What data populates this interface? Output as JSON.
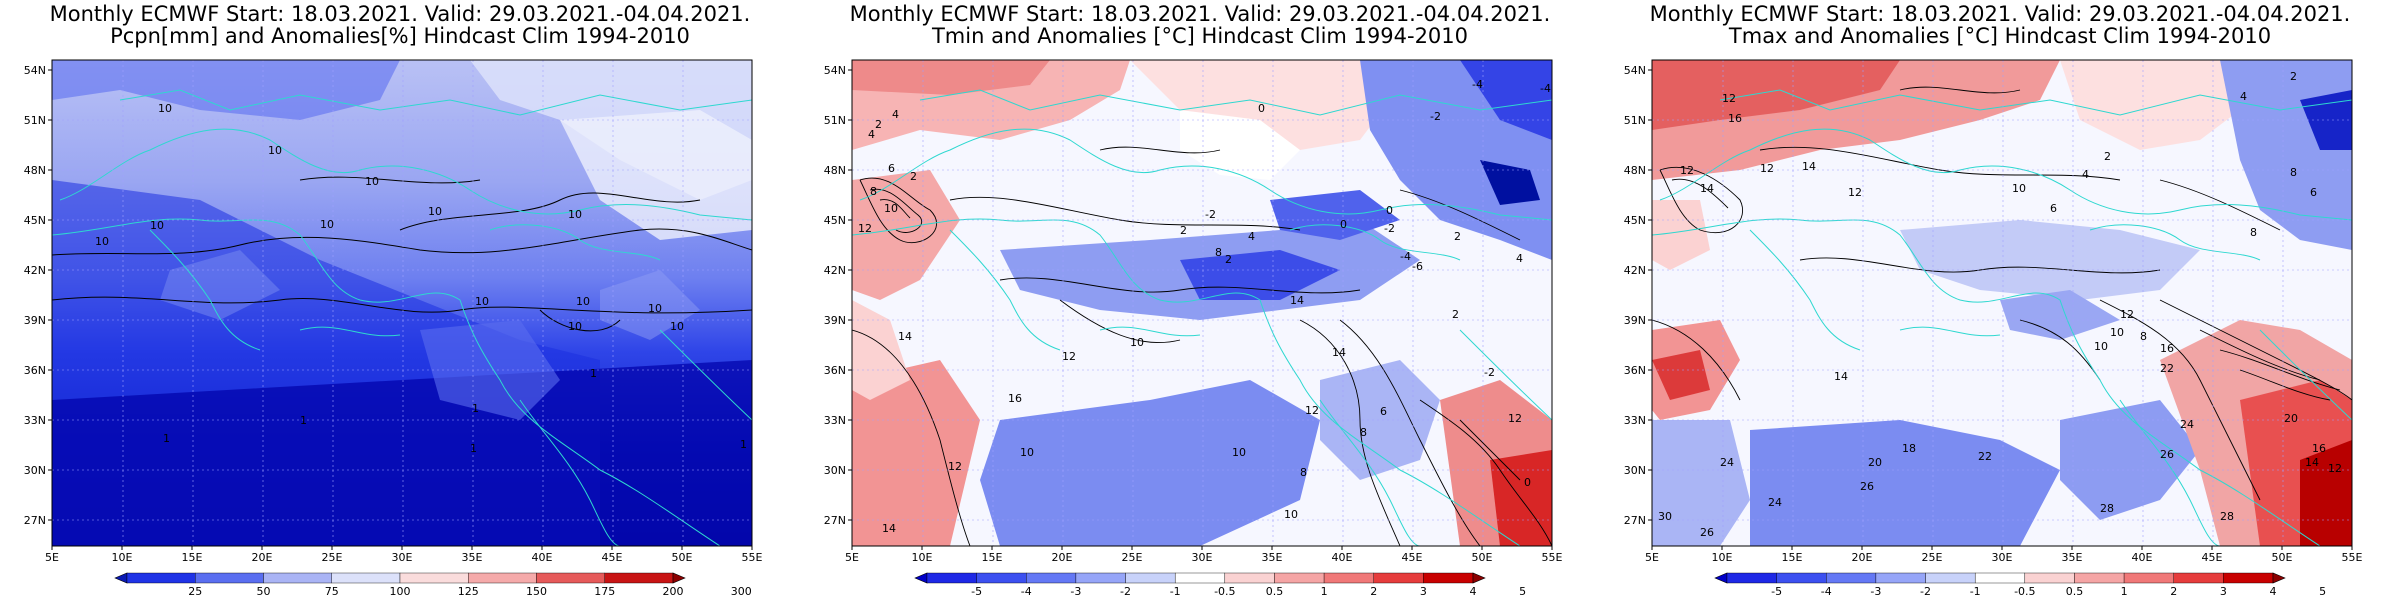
{
  "panels": [
    {
      "id": "pcpn",
      "title_line1": "Monthly ECMWF Start: 18.03.2021. Valid: 29.03.2021.-04.04.2021.",
      "title_line2": "Pcpn[mm] and Anomalies[%] Hindcast Clim 1994-2010",
      "colorbar": {
        "labels": [
          "25",
          "50",
          "75",
          "100",
          "125",
          "150",
          "175",
          "200",
          "300"
        ],
        "colors": [
          "#0a1ab4",
          "#1f33e6",
          "#5a6ef0",
          "#aab4f5",
          "#dce1fa",
          "#fadcdc",
          "#f5aaaa",
          "#e65a5a",
          "#c81414",
          "#8c0000"
        ]
      },
      "contour_labels": [
        "10",
        "10",
        "10",
        "10",
        "10",
        "10",
        "10",
        "10",
        "10",
        "10",
        "10",
        "10",
        "10",
        "1",
        "1",
        "1",
        "1",
        "1",
        "1"
      ]
    },
    {
      "id": "tmin",
      "title_line1": "Monthly ECMWF Start: 18.03.2021. Valid: 29.03.2021.-04.04.2021.",
      "title_line2": "Tmin and Anomalies [°C] Hindcast Clim 1994-2010",
      "colorbar": {
        "labels": [
          "-5",
          "-4",
          "-3",
          "-2",
          "-1",
          "-0.5",
          "0.5",
          "1",
          "2",
          "3",
          "4",
          "5"
        ],
        "colors": [
          "#0000c8",
          "#1e28e6",
          "#3c50f0",
          "#6478f5",
          "#96a5f8",
          "#c8d2fa",
          "#ffffff",
          "#fad2d2",
          "#f5a5a5",
          "#f07878",
          "#e63c3c",
          "#c80000",
          "#8c0000"
        ]
      },
      "contour_labels": [
        "4",
        "2",
        "0",
        "-2",
        "-4",
        "2",
        "4",
        "6",
        "8",
        "10",
        "12",
        "14",
        "16",
        "10",
        "12",
        "14",
        "0",
        "-2",
        "2",
        "4",
        "2",
        "8",
        "10",
        "12",
        "14",
        "14",
        "12",
        "10",
        "8",
        "6",
        "8",
        "10",
        "12",
        "-6",
        "-4",
        "-2",
        "0",
        "2",
        "4",
        "2",
        "-2",
        "0",
        "-4"
      ]
    },
    {
      "id": "tmax",
      "title_line1": "Monthly ECMWF Start: 18.03.2021. Valid: 29.03.2021.-04.04.2021.",
      "title_line2": "Tmax and Anomalies [°C] Hindcast Clim 1994-2010",
      "colorbar": {
        "labels": [
          "-5",
          "-4",
          "-3",
          "-2",
          "-1",
          "-0.5",
          "0.5",
          "1",
          "2",
          "3",
          "4",
          "5"
        ],
        "colors": [
          "#0000c8",
          "#1e28e6",
          "#3c50f0",
          "#6478f5",
          "#96a5f8",
          "#c8d2fa",
          "#ffffff",
          "#fad2d2",
          "#f5a5a5",
          "#f07878",
          "#e63c3c",
          "#c80000",
          "#8c0000"
        ]
      },
      "contour_labels": [
        "12",
        "16",
        "14",
        "12",
        "12",
        "14",
        "12",
        "10",
        "8",
        "6",
        "4",
        "2",
        "8",
        "10",
        "12",
        "14",
        "16",
        "18",
        "20",
        "22",
        "24",
        "26",
        "28",
        "22",
        "24",
        "26",
        "20",
        "16",
        "14",
        "12",
        "10",
        "8",
        "6",
        "4",
        "2",
        "30",
        "28",
        "26",
        "24"
      ]
    }
  ],
  "axes": {
    "lon_ticks": [
      "5E",
      "10E",
      "15E",
      "20E",
      "25E",
      "30E",
      "35E",
      "40E",
      "45E",
      "50E",
      "55E"
    ],
    "lat_ticks": [
      "54N",
      "51N",
      "48N",
      "45N",
      "42N",
      "39N",
      "36N",
      "33N",
      "30N",
      "27N"
    ]
  }
}
